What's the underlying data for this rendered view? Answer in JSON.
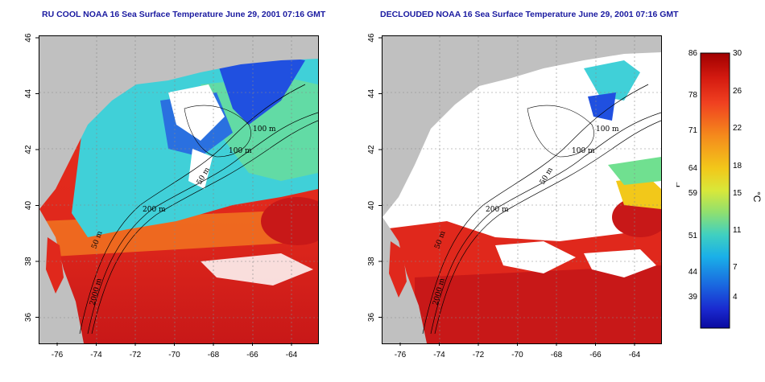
{
  "titles": {
    "left": "RU COOL NOAA 16 Sea Surface Temperature June 29, 2001 07:16 GMT",
    "right": "DECLOUDED NOAA 16 Sea Surface Temperature June 29, 2001 07:16 GMT"
  },
  "x_ticks": [
    "-76",
    "-74",
    "-72",
    "-70",
    "-68",
    "-66",
    "-64"
  ],
  "y_ticks": [
    "46",
    "44",
    "42",
    "40",
    "38",
    "36"
  ],
  "contour_labels": {
    "left": [
      "100 m",
      "100 m",
      "50 m",
      "200 m",
      "50 m",
      "2000 m"
    ],
    "right": [
      "100 m",
      "100 m",
      "50 m",
      "200 m",
      "50 m",
      "2000 m"
    ]
  },
  "colorbar": {
    "fahrenheit": [
      "86",
      "78",
      "71",
      "64",
      "59",
      "51",
      "44",
      "39"
    ],
    "celsius": [
      "30",
      "26",
      "22",
      "18",
      "15",
      "11",
      "7",
      "4"
    ],
    "unit_f": "°F",
    "unit_c": "°C",
    "colors": [
      "#a00000",
      "#d41a10",
      "#f04020",
      "#f58a1c",
      "#f2c81a",
      "#d8e83a",
      "#8fe070",
      "#40d0c0",
      "#1ab0e8",
      "#1a6ae0",
      "#1a2ad0",
      "#0a0aa0"
    ]
  },
  "colors": {
    "land": "#c0c0c0",
    "cloud": "#ffffff",
    "warm": "#e0281c",
    "hot": "#c81818",
    "orange": "#f07020",
    "cyan": "#40d0d8",
    "blue": "#2050e0",
    "green": "#70e090"
  }
}
